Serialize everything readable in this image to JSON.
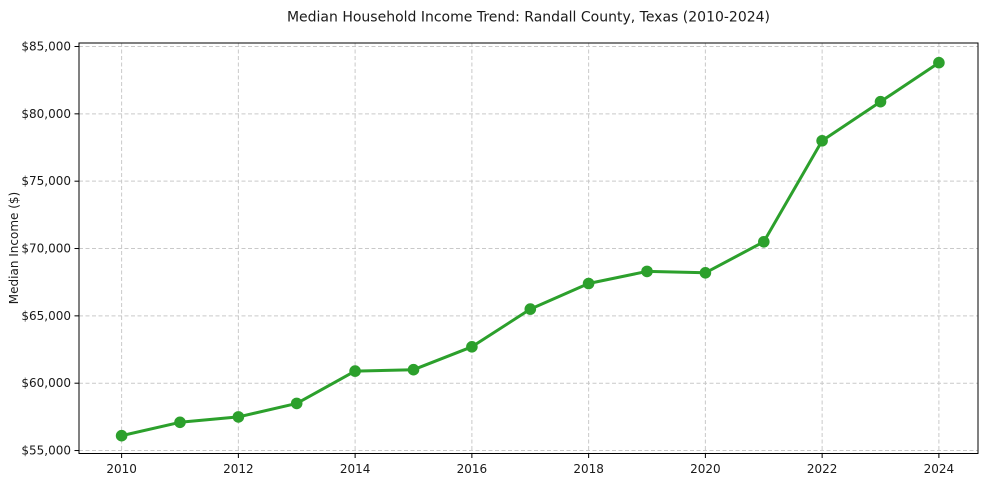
{
  "page": {
    "title": "Median Household Income Trend: Randall County, Texas (2010-2024)"
  },
  "chart_data": {
    "type": "line",
    "title": "Median Household Income Trend: Randall County, Texas (2010-2024)",
    "xlabel": "",
    "ylabel": "Median Income ($)",
    "x": [
      2010,
      2011,
      2012,
      2013,
      2014,
      2015,
      2016,
      2017,
      2018,
      2019,
      2020,
      2021,
      2022,
      2023,
      2024
    ],
    "values": [
      56100,
      57100,
      57500,
      58500,
      60900,
      61000,
      62700,
      65500,
      67400,
      68300,
      68200,
      70500,
      78000,
      80900,
      83800
    ],
    "x_ticks": [
      2010,
      2012,
      2014,
      2016,
      2018,
      2020,
      2022,
      2024
    ],
    "x_tick_labels": [
      "2010",
      "2012",
      "2014",
      "2016",
      "2018",
      "2020",
      "2022",
      "2024"
    ],
    "y_ticks": [
      55000,
      60000,
      65000,
      70000,
      75000,
      80000,
      85000
    ],
    "y_tick_labels": [
      "$55,000",
      "$60,000",
      "$65,000",
      "$70,000",
      "$75,000",
      "$80,000",
      "$85,000"
    ],
    "xlim": [
      2009.27,
      2024.67
    ],
    "ylim": [
      54780,
      85260
    ],
    "grid": true,
    "grid_style": "dashed",
    "legend": "none",
    "colors": {
      "line": "#2ca02c",
      "marker": "#2ca02c",
      "grid": "#c9c9c9",
      "spine": "#000000",
      "text": "#1a1a1a",
      "background": "#ffffff"
    }
  }
}
